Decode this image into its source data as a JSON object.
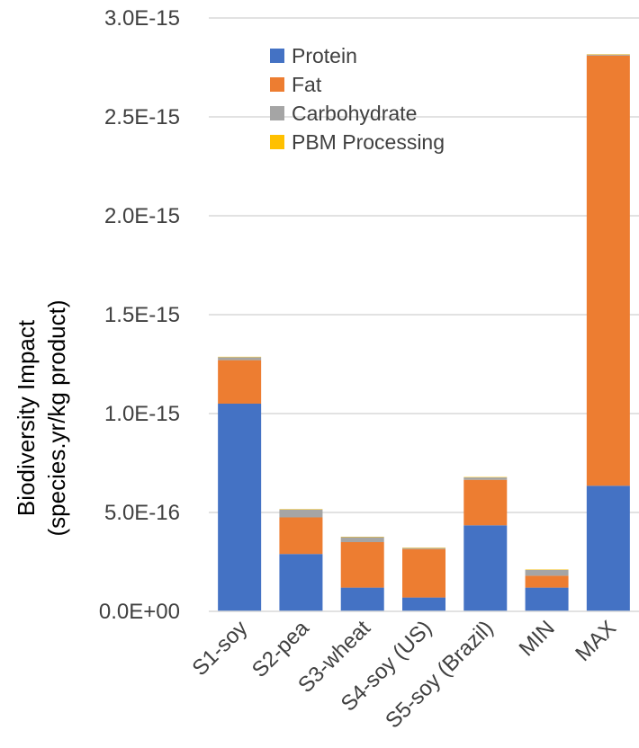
{
  "chart_data": {
    "type": "bar",
    "stacked": true,
    "categories": [
      "S1-soy",
      "S2-pea",
      "S3-wheat",
      "S4-soy (US)",
      "S5-soy (Brazil)",
      "MIN",
      "MAX"
    ],
    "series": [
      {
        "name": "Protein",
        "color": "#4472C4",
        "values": [
          1.05e-15,
          2.9e-16,
          1.2e-16,
          7e-17,
          4.35e-16,
          1.2e-16,
          6.35e-16
        ]
      },
      {
        "name": "Fat",
        "color": "#ED7D31",
        "values": [
          2.2e-16,
          1.85e-16,
          2.3e-16,
          2.45e-16,
          2.3e-16,
          6e-17,
          2.175e-15
        ]
      },
      {
        "name": "Carbohydrate",
        "color": "#A5A5A5",
        "values": [
          1.5e-17,
          4e-17,
          2.5e-17,
          5e-18,
          1.2e-17,
          3e-17,
          5e-18
        ]
      },
      {
        "name": "PBM Processing",
        "color": "#FFC000",
        "values": [
          2e-18,
          2e-18,
          2e-18,
          2e-18,
          2e-18,
          2e-18,
          2e-18
        ]
      }
    ],
    "ylabel_line1": "Biodiversity Impact",
    "ylabel_line2": "(species.yr/kg product)",
    "ylim": [
      0,
      3e-15
    ],
    "yticks": [
      0,
      5e-16,
      1e-15,
      1.5e-15,
      2e-15,
      2.5e-15,
      3e-15
    ],
    "ytick_labels": [
      "0.0E+00",
      "5.0E-16",
      "1.0E-15",
      "1.5E-15",
      "2.0E-15",
      "2.5E-15",
      "3.0E-15"
    ],
    "grid": true,
    "legend_position": "top-left inside plot"
  }
}
